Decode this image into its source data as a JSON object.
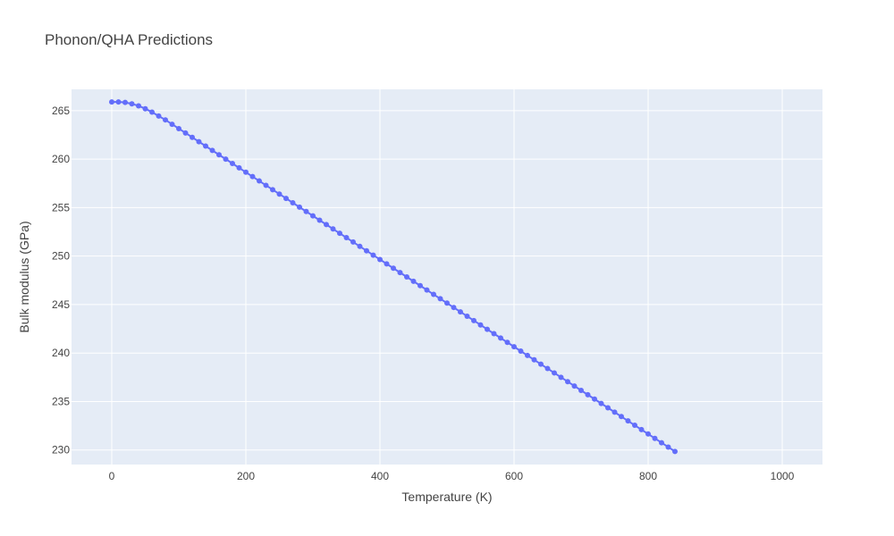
{
  "chart_data": {
    "type": "scatter",
    "mode": "lines+markers",
    "title": "Phonon/QHA Predictions",
    "xlabel": "Temperature (K)",
    "ylabel": "Bulk modulus (GPa)",
    "xlim": [
      -60,
      1060
    ],
    "ylim": [
      228.5,
      267.2
    ],
    "xticks": [
      0,
      200,
      400,
      600,
      800,
      1000
    ],
    "yticks": [
      230,
      235,
      240,
      245,
      250,
      255,
      260,
      265
    ],
    "grid": true,
    "legend": "none",
    "series": [
      {
        "color": "#636efa",
        "x_start": 0,
        "x_step": 10,
        "values": [
          265.9,
          265.9,
          265.85,
          265.7,
          265.5,
          265.2,
          264.85,
          264.45,
          264.05,
          263.6,
          263.15,
          262.7,
          262.25,
          261.8,
          261.35,
          260.9,
          260.45,
          260.0,
          259.55,
          259.1,
          258.65,
          258.2,
          257.75,
          257.3,
          256.85,
          256.4,
          255.95,
          255.5,
          255.05,
          254.6,
          254.15,
          253.7,
          253.25,
          252.8,
          252.35,
          251.9,
          251.45,
          251.0,
          250.55,
          250.1,
          249.65,
          249.2,
          248.75,
          248.3,
          247.85,
          247.4,
          246.95,
          246.5,
          246.05,
          245.6,
          245.15,
          244.7,
          244.25,
          243.8,
          243.35,
          242.9,
          242.45,
          242.0,
          241.55,
          241.1,
          240.65,
          240.2,
          239.75,
          239.3,
          238.85,
          238.4,
          237.95,
          237.5,
          237.05,
          236.6,
          236.15,
          235.7,
          235.25,
          234.8,
          234.35,
          233.9,
          233.45,
          233.0,
          232.55,
          232.1,
          231.65,
          231.2,
          230.75,
          230.3,
          229.85
        ]
      }
    ]
  },
  "colors": {
    "plot_bg": "#e5ecf6",
    "grid": "#ffffff",
    "marker": "#636efa"
  }
}
